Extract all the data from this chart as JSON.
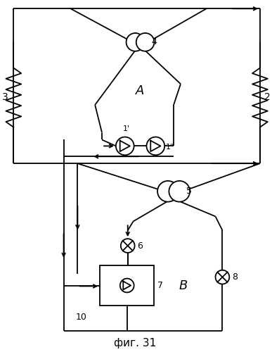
{
  "title": "фиг. 31",
  "bg_color": "#ffffff",
  "line_color": "#000000",
  "figsize": [
    3.87,
    5.0
  ],
  "dpi": 100
}
